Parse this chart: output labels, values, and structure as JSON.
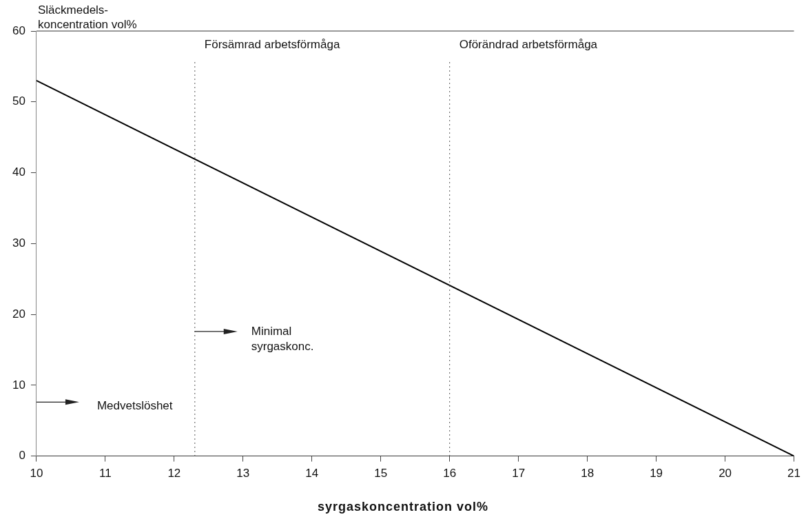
{
  "chart_data": {
    "type": "line",
    "xlabel": "syrgaskoncentration vol%",
    "ylabel": "Släckmedels-\nkoncentration vol%",
    "series": [
      {
        "color": "#000000",
        "x": [
          10,
          21
        ],
        "values": [
          53,
          0
        ]
      }
    ],
    "xlim": [
      10,
      21
    ],
    "xticks": [
      10,
      11,
      12,
      13,
      14,
      15,
      16,
      17,
      18,
      19,
      20,
      21
    ],
    "ylim": [
      0,
      60
    ],
    "yticks": [
      0,
      10,
      20,
      30,
      40,
      50,
      60
    ],
    "grid": false,
    "legend": false,
    "marker": "none",
    "line_style": "solid",
    "ref_lines": [
      {
        "axis": "x",
        "value": 12.3,
        "label": "Försämrad arbetsförmåga",
        "line_style": "dotted",
        "color": "#555555"
      },
      {
        "axis": "x",
        "value": 16,
        "label": "Oförändrad arbetsförmåga",
        "line_style": "dotted",
        "color": "#555555"
      }
    ],
    "annotations": [
      "Medvetslöshet",
      "Minimal\nsyrgaskonc."
    ]
  }
}
